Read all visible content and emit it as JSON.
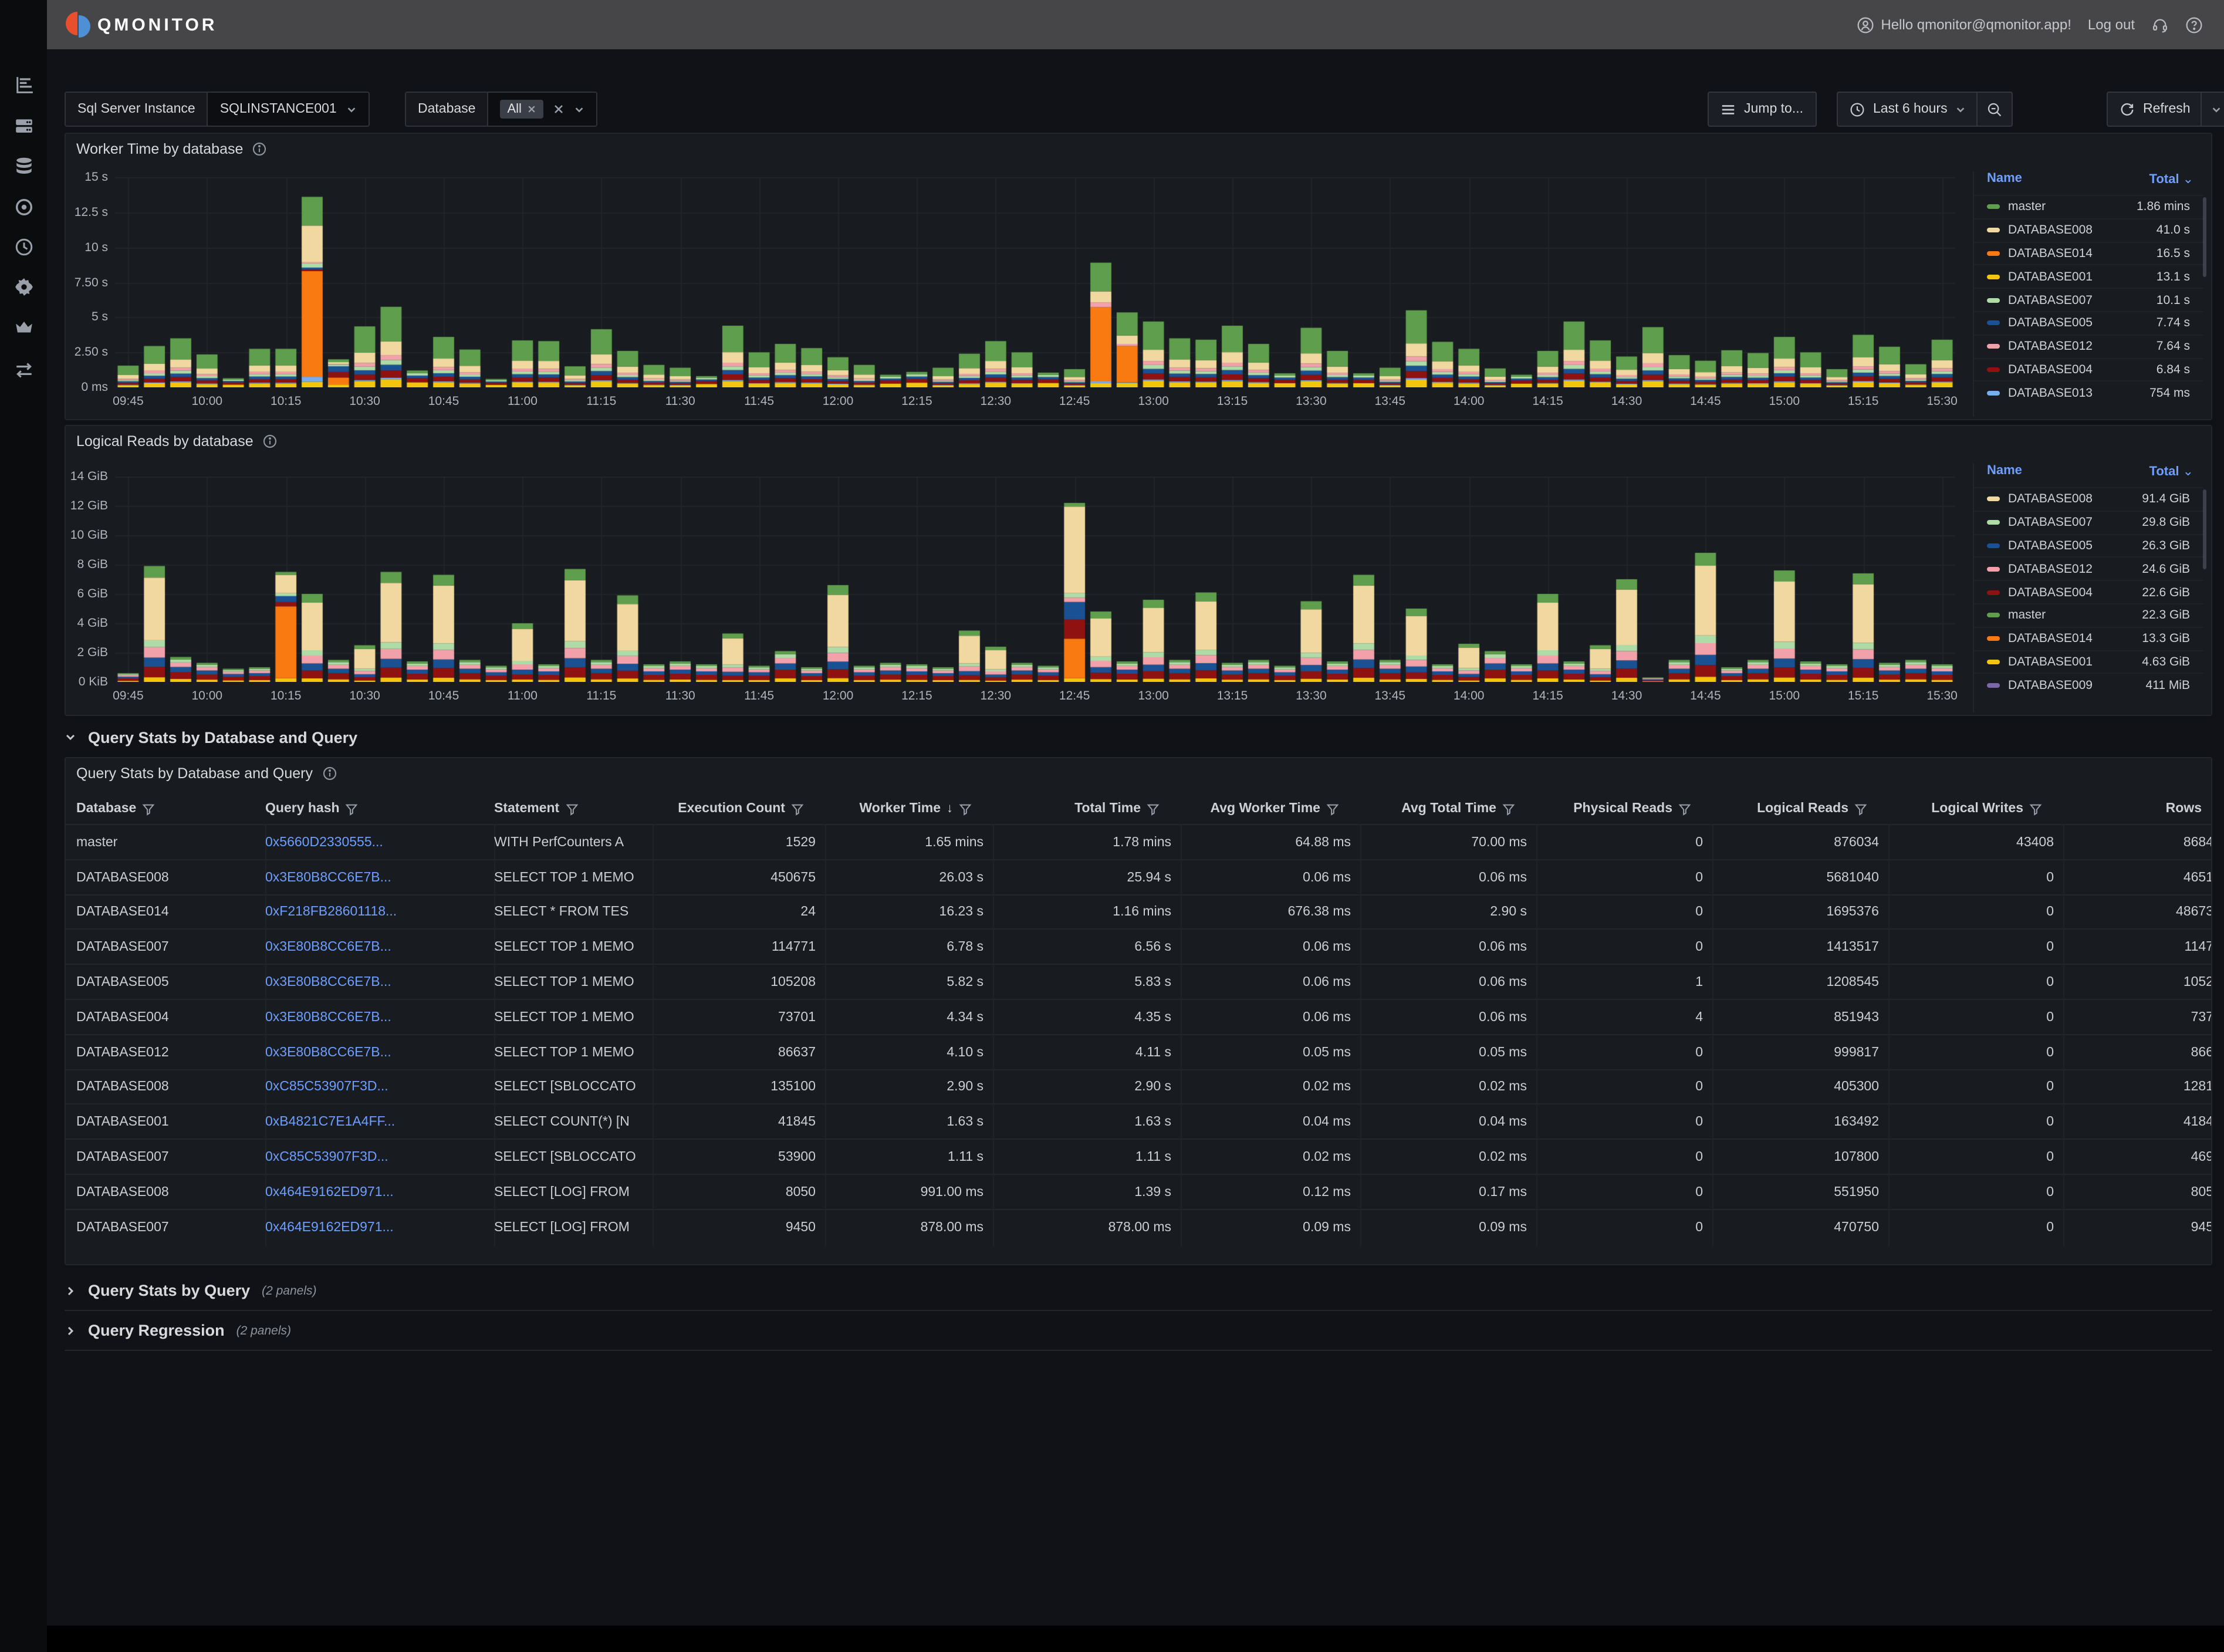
{
  "topbar": {
    "brand": "QMONITOR",
    "greeting": "Hello qmonitor@qmonitor.app!",
    "logout": "Log out"
  },
  "filters": {
    "instance_label": "Sql Server Instance",
    "instance_value": "SQLINSTANCE001",
    "database_label": "Database",
    "database_chip": "All",
    "jump_label": "Jump to...",
    "time_range": "Last 6 hours",
    "refresh_label": "Refresh"
  },
  "sidebar_icons": [
    "bar-chart-icon",
    "servers-icon",
    "database-icon",
    "record-icon",
    "clock-icon",
    "gear-icon",
    "crown-icon",
    "swap-arrows-icon"
  ],
  "colors": {
    "green": "#5f9e4c",
    "tan": "#f0d8a0",
    "orange": "#fa7a12",
    "yellow": "#f3c60d",
    "lightgreen": "#aedba6",
    "darkblue": "#1a5193",
    "pink": "#f2a1aa",
    "darkred": "#8f1211",
    "lightblue": "#76aef5",
    "purple": "#7a68a8",
    "link": "#6e9fff",
    "accent_blue": "#6e9fff"
  },
  "series_names": {
    "green": "master",
    "tan": "DATABASE008",
    "orange": "DATABASE014",
    "yellow": "DATABASE001",
    "lightgreen": "DATABASE007",
    "darkblue": "DATABASE005",
    "pink": "DATABASE012",
    "darkred": "DATABASE004",
    "lightblue": "DATABASE013",
    "purple": "DATABASE009"
  },
  "chart_data": [
    {
      "type": "bar",
      "title": "Worker Time by database",
      "ylabel": "Worker Time",
      "xlabel": "time",
      "ylim": [
        0,
        15
      ],
      "y_ticks": [
        [
          0,
          "0 ms"
        ],
        [
          2.5,
          "2.50 s"
        ],
        [
          5,
          "5 s"
        ],
        [
          7.5,
          "7.50 s"
        ],
        [
          10,
          "10 s"
        ],
        [
          12.5,
          "12.5 s"
        ],
        [
          15,
          "15 s"
        ]
      ],
      "x_labels": [
        "09:45",
        "10:00",
        "10:15",
        "10:30",
        "10:45",
        "11:00",
        "11:15",
        "11:30",
        "11:45",
        "12:00",
        "12:15",
        "12:30",
        "12:45",
        "13:00",
        "13:15",
        "13:30",
        "13:45",
        "14:00",
        "14:15",
        "14:30",
        "14:45",
        "15:00",
        "15:15",
        "15:30"
      ],
      "bars_per_label": 3,
      "stack_order": [
        "yellow",
        "lightblue",
        "orange",
        "darkred",
        "darkblue",
        "lightgreen",
        "pink",
        "tan",
        "green"
      ],
      "totals": [
        1.55,
        2.95,
        3.5,
        2.35,
        0.65,
        2.75,
        2.75,
        13.6,
        2.0,
        4.35,
        5.75,
        1.2,
        3.6,
        2.7,
        0.6,
        3.35,
        3.3,
        1.5,
        4.15,
        2.6,
        1.6,
        1.4,
        0.8,
        4.4,
        2.5,
        3.1,
        2.8,
        2.15,
        1.6,
        0.9,
        1.1,
        1.4,
        2.4,
        3.3,
        2.5,
        1.05,
        1.3,
        8.9,
        5.35,
        4.7,
        3.5,
        3.4,
        4.4,
        3.1,
        1.0,
        4.25,
        2.6,
        1.0,
        1.4,
        5.5,
        3.25,
        2.75,
        1.35,
        0.9,
        2.6,
        4.7,
        3.35,
        2.2,
        4.3,
        2.3,
        1.9,
        2.65,
        2.45,
        3.6,
        2.5,
        1.3,
        3.75,
        2.9,
        1.65,
        3.4
      ],
      "profiles": [
        {
          "max": 1.2,
          "weights": {
            "yellow": 30,
            "darkred": 25,
            "darkblue": 15,
            "lightgreen": 15,
            "green": 15
          }
        },
        {
          "max": 99,
          "weights": {
            "yellow": 10,
            "lightblue": 2,
            "darkred": 9,
            "darkblue": 7,
            "lightgreen": 6,
            "pink": 6,
            "tan": 17,
            "green": 43
          }
        }
      ],
      "overrides": {
        "7": {
          "yellow": 0.4,
          "lightblue": 0.35,
          "orange": 7.55,
          "darkred": 0.12,
          "darkblue": 0.13,
          "lightgreen": 0.3,
          "pink": 0.08,
          "tan": 2.62,
          "green": 2.05
        },
        "8": {
          "yellow": 0.2,
          "orange": 0.5,
          "darkred": 0.4,
          "darkblue": 0.4,
          "lightgreen": 0.1,
          "pink": 0.05,
          "tan": 0.15,
          "green": 0.2
        },
        "37": {
          "yellow": 0.3,
          "lightblue": 0.12,
          "orange": 5.3,
          "pink": 0.35,
          "tan": 0.78,
          "green": 2.05
        },
        "38": {
          "yellow": 0.3,
          "lightblue": 0.05,
          "orange": 2.6,
          "tan": 0.6,
          "pink": 0.15,
          "green": 1.65
        }
      },
      "legend_headers": {
        "name": "Name",
        "total": "Total"
      },
      "legend": [
        {
          "name": "master",
          "total": "1.86 mins",
          "color": "green"
        },
        {
          "name": "DATABASE008",
          "total": "41.0 s",
          "color": "tan"
        },
        {
          "name": "DATABASE014",
          "total": "16.5 s",
          "color": "orange"
        },
        {
          "name": "DATABASE001",
          "total": "13.1 s",
          "color": "yellow"
        },
        {
          "name": "DATABASE007",
          "total": "10.1 s",
          "color": "lightgreen"
        },
        {
          "name": "DATABASE005",
          "total": "7.74 s",
          "color": "darkblue"
        },
        {
          "name": "DATABASE012",
          "total": "7.64 s",
          "color": "pink"
        },
        {
          "name": "DATABASE004",
          "total": "6.84 s",
          "color": "darkred"
        },
        {
          "name": "DATABASE013",
          "total": "754 ms",
          "color": "lightblue"
        }
      ]
    },
    {
      "type": "bar",
      "title": "Logical Reads by database",
      "ylabel": "Logical Reads",
      "xlabel": "time",
      "ylim": [
        0,
        14
      ],
      "y_ticks": [
        [
          0,
          "0 KiB"
        ],
        [
          2,
          "2 GiB"
        ],
        [
          4,
          "4 GiB"
        ],
        [
          6,
          "6 GiB"
        ],
        [
          8,
          "8 GiB"
        ],
        [
          10,
          "10 GiB"
        ],
        [
          12,
          "12 GiB"
        ],
        [
          14,
          "14 GiB"
        ]
      ],
      "x_labels": [
        "09:45",
        "10:00",
        "10:15",
        "10:30",
        "10:45",
        "11:00",
        "11:15",
        "11:30",
        "11:45",
        "12:00",
        "12:15",
        "12:30",
        "12:45",
        "13:00",
        "13:15",
        "13:30",
        "13:45",
        "14:00",
        "14:15",
        "14:30",
        "14:45",
        "15:00",
        "15:15",
        "15:30"
      ],
      "bars_per_label": 3,
      "stack_order": [
        "yellow",
        "orange",
        "darkred",
        "darkblue",
        "pink",
        "lightgreen",
        "tan",
        "green",
        "purple"
      ],
      "totals": [
        0.6,
        7.9,
        1.7,
        1.3,
        0.9,
        1.0,
        7.5,
        6.0,
        1.5,
        2.5,
        7.5,
        1.4,
        7.3,
        1.5,
        1.1,
        4.0,
        1.2,
        7.7,
        1.5,
        5.9,
        1.2,
        1.4,
        1.2,
        3.3,
        1.1,
        2.1,
        1.0,
        6.6,
        1.1,
        1.3,
        1.2,
        1.0,
        3.5,
        2.4,
        1.3,
        1.1,
        12.2,
        4.8,
        1.4,
        5.6,
        1.5,
        6.1,
        1.3,
        1.5,
        1.1,
        5.5,
        1.4,
        7.3,
        1.5,
        5.0,
        1.2,
        2.6,
        2.1,
        1.2,
        6.0,
        1.4,
        2.5,
        7.0,
        0.3,
        1.5,
        8.8,
        1.0,
        1.5,
        7.6,
        1.4,
        1.2,
        7.4,
        1.3,
        1.5,
        1.2
      ],
      "profiles": [
        {
          "max": 2.2,
          "weights": {
            "yellow": 12,
            "darkred": 28,
            "darkblue": 20,
            "pink": 18,
            "lightgreen": 12,
            "green": 10
          }
        },
        {
          "max": 99,
          "weights": {
            "yellow": 4,
            "darkred": 9,
            "darkblue": 8,
            "pink": 9,
            "lightgreen": 6,
            "green": 10,
            "tan": 54
          }
        }
      ],
      "overrides": {
        "6": {
          "yellow": 0.25,
          "orange": 4.9,
          "darkred": 0.3,
          "darkblue": 0.4,
          "lightgreen": 0.2,
          "tan": 1.25,
          "green": 0.2
        },
        "36": {
          "yellow": 0.25,
          "orange": 2.7,
          "darkred": 1.3,
          "darkblue": 1.2,
          "lightgreen": 0.3,
          "pink": 0.3,
          "tan": 5.9,
          "green": 0.25
        }
      },
      "legend_headers": {
        "name": "Name",
        "total": "Total"
      },
      "legend": [
        {
          "name": "DATABASE008",
          "total": "91.4 GiB",
          "color": "tan"
        },
        {
          "name": "DATABASE007",
          "total": "29.8 GiB",
          "color": "lightgreen"
        },
        {
          "name": "DATABASE005",
          "total": "26.3 GiB",
          "color": "darkblue"
        },
        {
          "name": "DATABASE012",
          "total": "24.6 GiB",
          "color": "pink"
        },
        {
          "name": "DATABASE004",
          "total": "22.6 GiB",
          "color": "darkred"
        },
        {
          "name": "master",
          "total": "22.3 GiB",
          "color": "green"
        },
        {
          "name": "DATABASE014",
          "total": "13.3 GiB",
          "color": "orange"
        },
        {
          "name": "DATABASE001",
          "total": "4.63 GiB",
          "color": "yellow"
        },
        {
          "name": "DATABASE009",
          "total": "411 MiB",
          "color": "purple"
        }
      ]
    }
  ],
  "sections": {
    "expanded_title": "Query Stats by Database and Query",
    "collapsed": [
      {
        "title": "Query Stats by Query",
        "meta": "(2 panels)"
      },
      {
        "title": "Query Regression",
        "meta": "(2 panels)"
      }
    ]
  },
  "query_table": {
    "panel_title": "Query Stats by Database and Query",
    "columns": [
      {
        "label": "Database",
        "filter": true,
        "align": "left"
      },
      {
        "label": "Query hash",
        "filter": true,
        "align": "left"
      },
      {
        "label": "Statement",
        "filter": true,
        "align": "left"
      },
      {
        "label": "Execution Count",
        "filter": true,
        "align": "right"
      },
      {
        "label": "Worker Time",
        "filter": true,
        "sort": "desc",
        "align": "right"
      },
      {
        "label": "Total Time",
        "filter": true,
        "align": "right"
      },
      {
        "label": "Avg Worker Time",
        "filter": true,
        "align": "right"
      },
      {
        "label": "Avg Total Time",
        "filter": true,
        "align": "right"
      },
      {
        "label": "Physical Reads",
        "filter": true,
        "align": "right"
      },
      {
        "label": "Logical Reads",
        "filter": true,
        "align": "right"
      },
      {
        "label": "Logical Writes",
        "filter": true,
        "align": "right"
      },
      {
        "label": "Rows",
        "filter": false,
        "align": "right"
      }
    ],
    "rows": [
      [
        "master",
        "0x5660D2330555...",
        "WITH PerfCounters A",
        "1529",
        "1.65 mins",
        "1.78 mins",
        "64.88 ms",
        "70.00 ms",
        "0",
        "876034",
        "43408",
        "8684"
      ],
      [
        "DATABASE008",
        "0x3E80B8CC6E7B...",
        "SELECT TOP 1 MEMO",
        "450675",
        "26.03 s",
        "25.94 s",
        "0.06 ms",
        "0.06 ms",
        "0",
        "5681040",
        "0",
        "4651"
      ],
      [
        "DATABASE014",
        "0xF218FB28601118...",
        "SELECT * FROM TES",
        "24",
        "16.23 s",
        "1.16 mins",
        "676.38 ms",
        "2.90 s",
        "0",
        "1695376",
        "0",
        "48673"
      ],
      [
        "DATABASE007",
        "0x3E80B8CC6E7B...",
        "SELECT TOP 1 MEMO",
        "114771",
        "6.78 s",
        "6.56 s",
        "0.06 ms",
        "0.06 ms",
        "0",
        "1413517",
        "0",
        "1147"
      ],
      [
        "DATABASE005",
        "0x3E80B8CC6E7B...",
        "SELECT TOP 1 MEMO",
        "105208",
        "5.82 s",
        "5.83 s",
        "0.06 ms",
        "0.06 ms",
        "1",
        "1208545",
        "0",
        "1052"
      ],
      [
        "DATABASE004",
        "0x3E80B8CC6E7B...",
        "SELECT TOP 1 MEMO",
        "73701",
        "4.34 s",
        "4.35 s",
        "0.06 ms",
        "0.06 ms",
        "4",
        "851943",
        "0",
        "737"
      ],
      [
        "DATABASE012",
        "0x3E80B8CC6E7B...",
        "SELECT TOP 1 MEMO",
        "86637",
        "4.10 s",
        "4.11 s",
        "0.05 ms",
        "0.05 ms",
        "0",
        "999817",
        "0",
        "866"
      ],
      [
        "DATABASE008",
        "0xC85C53907F3D...",
        "SELECT [SBLOCCATO",
        "135100",
        "2.90 s",
        "2.90 s",
        "0.02 ms",
        "0.02 ms",
        "0",
        "405300",
        "0",
        "1281"
      ],
      [
        "DATABASE001",
        "0xB4821C7E1A4FF...",
        "SELECT COUNT(*) [N",
        "41845",
        "1.63 s",
        "1.63 s",
        "0.04 ms",
        "0.04 ms",
        "0",
        "163492",
        "0",
        "4184"
      ],
      [
        "DATABASE007",
        "0xC85C53907F3D...",
        "SELECT [SBLOCCATO",
        "53900",
        "1.11 s",
        "1.11 s",
        "0.02 ms",
        "0.02 ms",
        "0",
        "107800",
        "0",
        "469"
      ],
      [
        "DATABASE008",
        "0x464E9162ED971...",
        "SELECT [LOG] FROM",
        "8050",
        "991.00 ms",
        "1.39 s",
        "0.12 ms",
        "0.17 ms",
        "0",
        "551950",
        "0",
        "805"
      ],
      [
        "DATABASE007",
        "0x464E9162ED971...",
        "SELECT [LOG] FROM",
        "9450",
        "878.00 ms",
        "878.00 ms",
        "0.09 ms",
        "0.09 ms",
        "0",
        "470750",
        "0",
        "945"
      ]
    ]
  }
}
